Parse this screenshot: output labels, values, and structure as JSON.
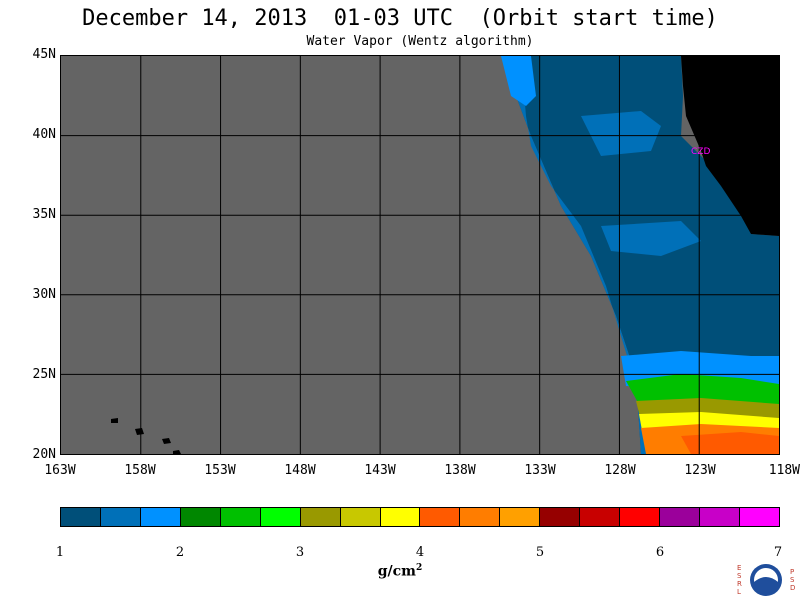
{
  "title": "December 14, 2013  01-03 UTC  (Orbit start time)",
  "subtitle": "Water Vapor (Wentz algorithm)",
  "map": {
    "lon_min": -163,
    "lon_max": -118,
    "lat_min": 20,
    "lat_max": 45,
    "lat_labels": [
      "45N",
      "40N",
      "35N",
      "30N",
      "25N",
      "20N"
    ],
    "lon_labels": [
      "163W",
      "158W",
      "153W",
      "148W",
      "143W",
      "138W",
      "133W",
      "128W",
      "123W",
      "118W"
    ],
    "colors": {
      "no_data": "#646464",
      "land": "#000000",
      "grid": "#000000"
    },
    "station": {
      "label": "CZD",
      "color": "#ff00ff"
    }
  },
  "colorbar": {
    "ticks": [
      "1",
      "2",
      "3",
      "4",
      "5",
      "6",
      "7"
    ],
    "colors": [
      "#004f79",
      "#0070b8",
      "#0091ff",
      "#008700",
      "#00c000",
      "#00ff00",
      "#999900",
      "#c8c800",
      "#ffff00",
      "#ff5a00",
      "#ff7d00",
      "#ffa000",
      "#960000",
      "#c80000",
      "#ff0000",
      "#9b009b",
      "#c800c8",
      "#ff00ff"
    ],
    "units_base": "g/cm",
    "units_exp": "2"
  },
  "logo": {
    "icon": "noaa-logo-icon",
    "left_letters": [
      "E",
      "S",
      "R",
      "L"
    ],
    "right_letters": [
      "P",
      "S",
      "D"
    ]
  }
}
